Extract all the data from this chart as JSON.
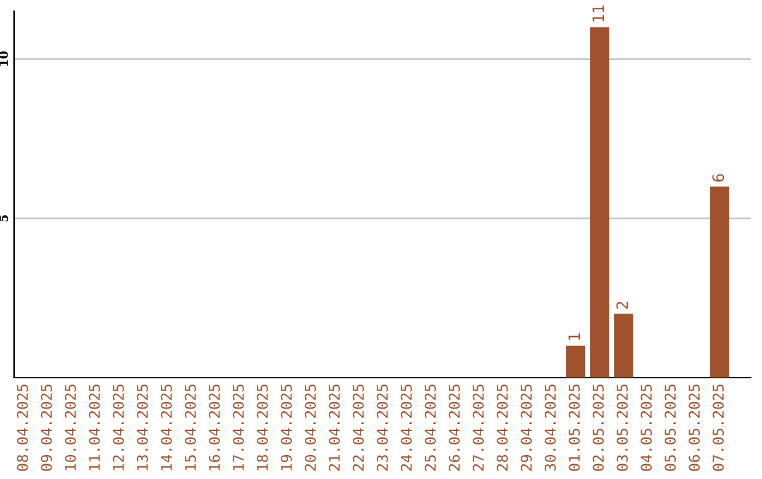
{
  "chart_data": {
    "type": "bar",
    "categories": [
      "08.04.2025",
      "09.04.2025",
      "10.04.2025",
      "11.04.2025",
      "12.04.2025",
      "13.04.2025",
      "14.04.2025",
      "15.04.2025",
      "16.04.2025",
      "17.04.2025",
      "18.04.2025",
      "19.04.2025",
      "20.04.2025",
      "21.04.2025",
      "22.04.2025",
      "23.04.2025",
      "24.04.2025",
      "25.04.2025",
      "26.04.2025",
      "27.04.2025",
      "28.04.2025",
      "29.04.2025",
      "30.04.2025",
      "01.05.2025",
      "02.05.2025",
      "03.05.2025",
      "04.05.2025",
      "05.05.2025",
      "06.05.2025",
      "07.05.2025"
    ],
    "values": [
      0,
      0,
      0,
      0,
      0,
      0,
      0,
      0,
      0,
      0,
      0,
      0,
      0,
      0,
      0,
      0,
      0,
      0,
      0,
      0,
      0,
      0,
      0,
      1,
      11,
      2,
      0,
      0,
      0,
      6
    ],
    "value_labels": [
      null,
      null,
      null,
      null,
      null,
      null,
      null,
      null,
      null,
      null,
      null,
      null,
      null,
      null,
      null,
      null,
      null,
      null,
      null,
      null,
      null,
      null,
      null,
      "1",
      "11",
      "2",
      null,
      null,
      null,
      "6"
    ],
    "color": "#a0522d",
    "ylim": [
      0,
      11.5
    ],
    "yticks": [
      5,
      10
    ],
    "grid": "y"
  }
}
